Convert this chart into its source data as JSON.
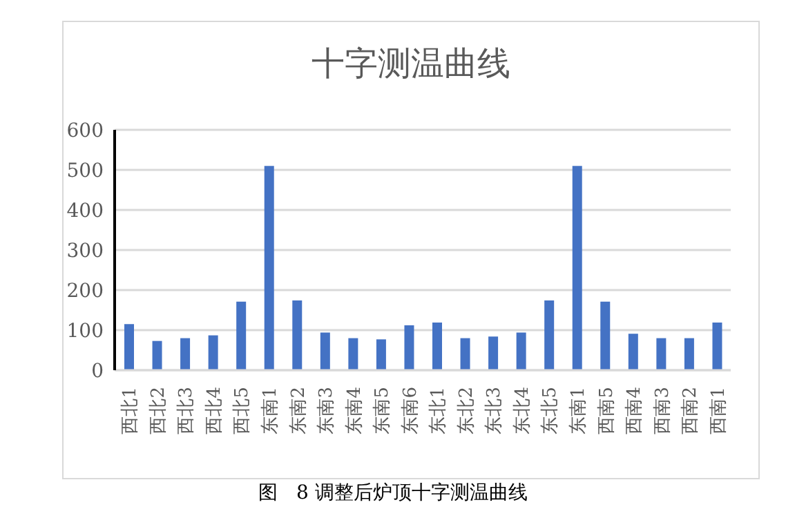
{
  "chart_data": {
    "type": "bar",
    "title": "十字测温曲线",
    "categories": [
      "西北1",
      "西北2",
      "西北3",
      "西北4",
      "西北5",
      "东南1",
      "东南2",
      "东南3",
      "东南4",
      "东南5",
      "东南6",
      "东北1",
      "东北2",
      "东北3",
      "东北4",
      "东北5",
      "东南1",
      "西南5",
      "西南4",
      "西南3",
      "西南2",
      "西南1"
    ],
    "values": [
      115,
      73,
      80,
      87,
      171,
      510,
      174,
      94,
      80,
      77,
      112,
      119,
      80,
      84,
      94,
      174,
      510,
      171,
      91,
      80,
      80,
      119
    ],
    "color": "#4472c4",
    "ylim": [
      0,
      600
    ],
    "yticks": [
      0,
      100,
      200,
      300,
      400,
      500,
      600
    ],
    "grid": "y",
    "annotations": [
      "图   8 调整后炉顶十字测温曲线"
    ]
  }
}
